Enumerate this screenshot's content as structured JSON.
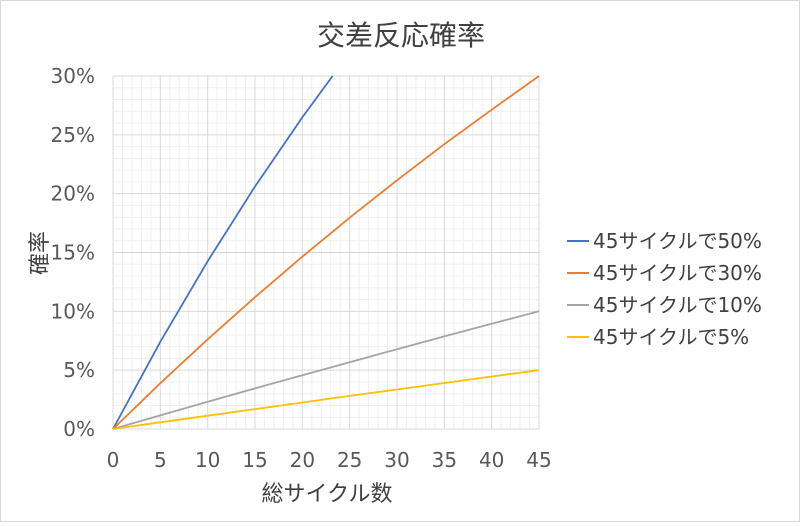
{
  "chart_data": {
    "type": "line",
    "title": "交差反応確率",
    "xlabel": "総サイクル数",
    "ylabel": "確率",
    "xlim": [
      0,
      45
    ],
    "ylim": [
      0,
      0.3
    ],
    "x_ticks": [
      "0",
      "5",
      "10",
      "15",
      "20",
      "25",
      "30",
      "35",
      "40",
      "45"
    ],
    "y_ticks": [
      "0%",
      "5%",
      "10%",
      "15%",
      "20%",
      "25%",
      "30%"
    ],
    "grid": true,
    "minor_grid": true,
    "legend_position": "right",
    "x": [
      0,
      5,
      10,
      15,
      20,
      25,
      30,
      35,
      40,
      45
    ],
    "series": [
      {
        "name": "45サイクルで50%",
        "color": "#4472c4",
        "values": [
          0,
          0.0741,
          0.1426,
          0.2061,
          0.2648,
          null,
          null,
          null,
          null,
          null
        ],
        "end_point": [
          23.2,
          0.3
        ]
      },
      {
        "name": "45サイクルで30%",
        "color": "#ed7d31",
        "values": [
          0,
          0.0389,
          0.0762,
          0.112,
          0.1464,
          0.1796,
          0.2114,
          0.242,
          0.2714,
          0.3
        ]
      },
      {
        "name": "45サイクルで10%",
        "color": "#a5a5a5",
        "values": [
          0,
          0.0116,
          0.0231,
          0.0345,
          0.0457,
          0.0568,
          0.0678,
          0.0787,
          0.0894,
          0.1
        ]
      },
      {
        "name": "45サイクルで5%",
        "color": "#ffc000",
        "values": [
          0,
          0.0057,
          0.0113,
          0.0169,
          0.0225,
          0.0281,
          0.0336,
          0.0391,
          0.0446,
          0.05
        ]
      }
    ]
  }
}
